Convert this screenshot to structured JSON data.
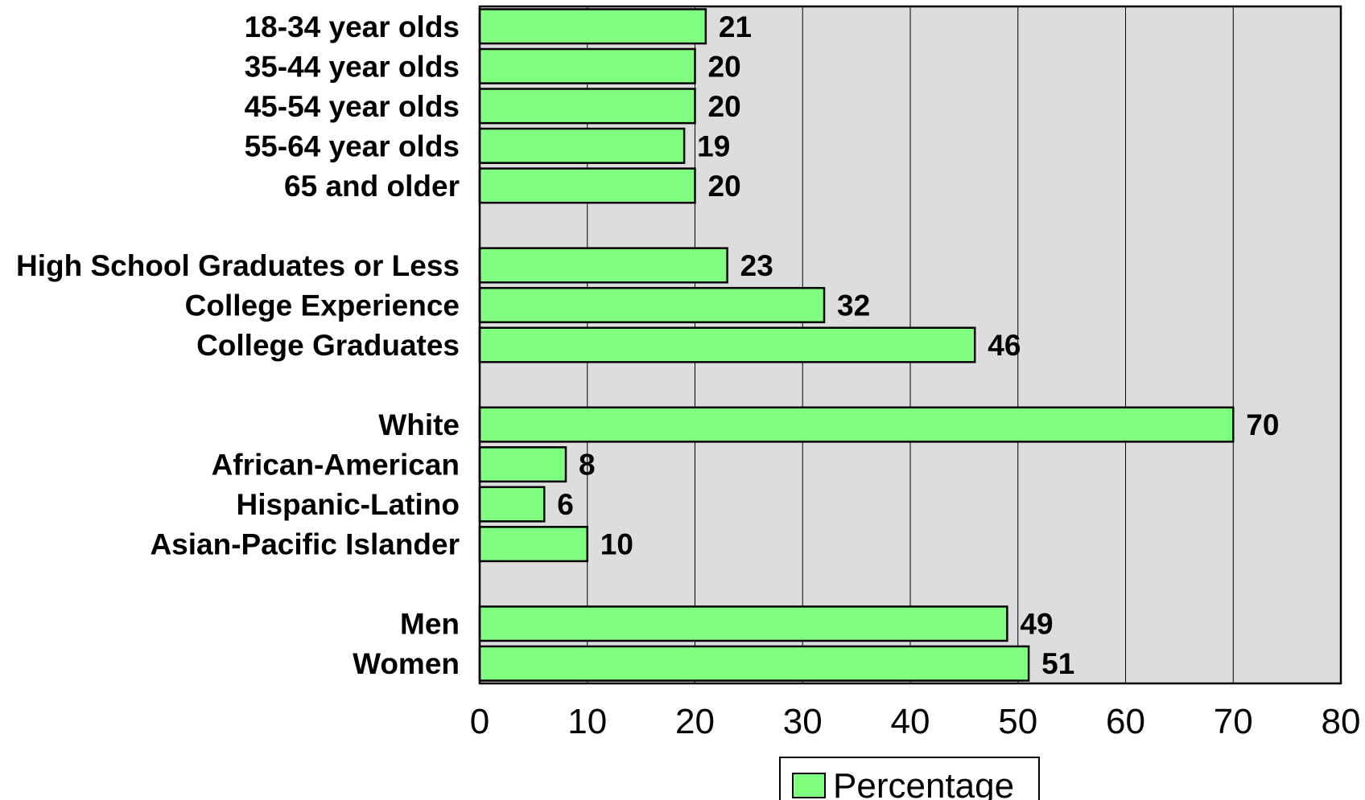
{
  "chart_data": {
    "type": "bar",
    "orientation": "horizontal",
    "title": "",
    "xlabel": "",
    "ylabel": "",
    "xlim": [
      0,
      80
    ],
    "x_ticks": [
      0,
      10,
      20,
      30,
      40,
      50,
      60,
      70,
      80
    ],
    "grid": "vertical",
    "legend_position": "bottom",
    "colors": {
      "bar": "#80ff80",
      "bar_stroke": "#000000",
      "plot_background": "#dddddd"
    },
    "groups": [
      [
        "18-34 year olds",
        "35-44 year olds",
        "45-54 year olds",
        "55-64 year olds",
        "65 and older"
      ],
      [
        "High School Graduates or Less",
        "College Experience",
        "College Graduates"
      ],
      [
        "White",
        "African-American",
        "Hispanic-Latino",
        "Asian-Pacific Islander"
      ],
      [
        "Men",
        "Women"
      ]
    ],
    "categories": [
      "18-34 year olds",
      "35-44 year olds",
      "45-54 year olds",
      "55-64 year olds",
      "65 and older",
      "High School Graduates or Less",
      "College Experience",
      "College Graduates",
      "White",
      "African-American",
      "Hispanic-Latino",
      "Asian-Pacific Islander",
      "Men",
      "Women"
    ],
    "series": [
      {
        "name": "Percentage",
        "values": [
          21,
          20,
          20,
          19,
          20,
          23,
          32,
          46,
          70,
          8,
          6,
          10,
          49,
          51
        ]
      }
    ]
  }
}
